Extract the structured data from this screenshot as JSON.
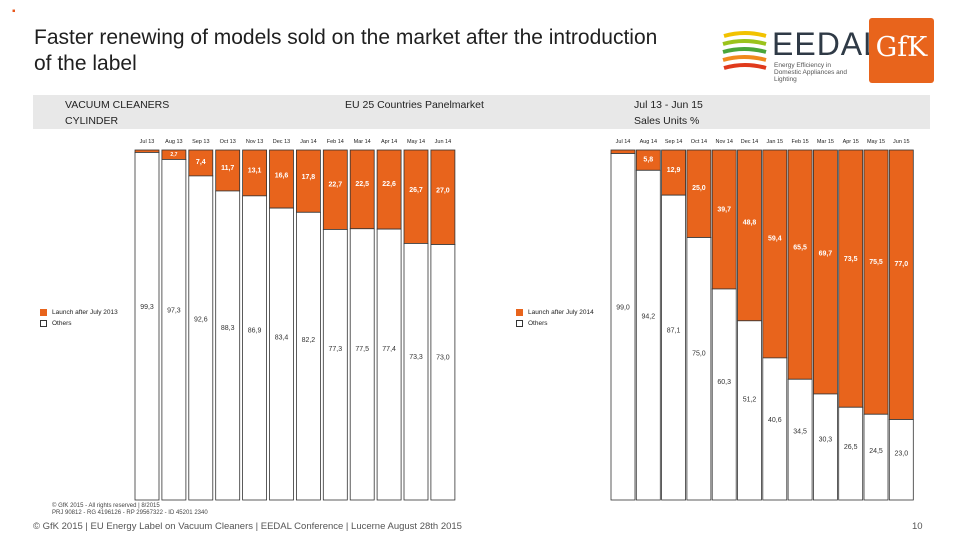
{
  "header": {
    "title": "Faster renewing of models sold on the market after the introduction of the label",
    "eedal_logo_text": "EEDAL",
    "eedal_logo_sub": "Energy Efficiency in Domestic Appliances and Lighting",
    "gfk_logo_text": "GfK"
  },
  "band": {
    "category_line1": "VACUUM CLEANERS",
    "category_line2": "CYLINDER",
    "scope": "EU 25 Countries Panelmarket",
    "period": "Jul 13 - Jun 15",
    "measure": "Sales Units %"
  },
  "colors": {
    "launch": "#e8641c",
    "others": "#ffffff",
    "outline": "#333333"
  },
  "chart_data": [
    {
      "type": "bar",
      "stacked": true,
      "categories": [
        "Jul 13",
        "Aug 13",
        "Sep 13",
        "Oct 13",
        "Nov 13",
        "Dec 13",
        "Jan 14",
        "Feb 14",
        "Mar 14",
        "Apr 14",
        "May 14",
        "Jun 14"
      ],
      "series": [
        {
          "name": "Launch after July 2013",
          "values": [
            0.7,
            2.7,
            7.4,
            11.7,
            13.1,
            16.6,
            17.8,
            22.7,
            22.5,
            22.6,
            26.7,
            27.0
          ],
          "labels": [
            "",
            "2,7",
            "7,4",
            "11,7",
            "13,1",
            "16,6",
            "17,8",
            "22,7",
            "22,5",
            "22,6",
            "26,7",
            "27,0"
          ]
        },
        {
          "name": "Others",
          "values": [
            99.3,
            97.3,
            92.6,
            88.3,
            86.9,
            83.4,
            82.2,
            77.3,
            77.5,
            77.4,
            73.3,
            73.0
          ],
          "labels": [
            "99,3",
            "97,3",
            "92,6",
            "88,3",
            "86,9",
            "83,4",
            "82,2",
            "77,3",
            "77,5",
            "77,4",
            "73,3",
            "73,0"
          ]
        }
      ],
      "legend": [
        "Launch after July 2013",
        "Others"
      ],
      "ylim": [
        0,
        100
      ]
    },
    {
      "type": "bar",
      "stacked": true,
      "categories": [
        "Jul 14",
        "Aug 14",
        "Sep 14",
        "Oct 14",
        "Nov 14",
        "Dec 14",
        "Jan 15",
        "Feb 15",
        "Mar 15",
        "Apr 15",
        "May 15",
        "Jun 15"
      ],
      "series": [
        {
          "name": "Launch after July 2014",
          "values": [
            1.0,
            5.8,
            12.9,
            25.0,
            39.7,
            48.8,
            59.4,
            65.5,
            69.7,
            73.5,
            75.5,
            77.0
          ],
          "labels": [
            "",
            "5,8",
            "12,9",
            "25,0",
            "39,7",
            "48,8",
            "59,4",
            "65,5",
            "69,7",
            "73,5",
            "75,5",
            "77,0"
          ]
        },
        {
          "name": "Others",
          "values": [
            99.0,
            94.2,
            87.1,
            75.0,
            60.3,
            51.2,
            40.6,
            34.5,
            30.3,
            26.5,
            24.5,
            23.0
          ],
          "labels": [
            "99,0",
            "94,2",
            "87,1",
            "75,0",
            "60,3",
            "51,2",
            "40,6",
            "34,5",
            "30,3",
            "26,5",
            "24,5",
            "23,0"
          ]
        }
      ],
      "legend": [
        "Launch after July 2014",
        "Others"
      ],
      "ylim": [
        0,
        100
      ]
    }
  ],
  "source": {
    "line1": "© GfK 2015 - All rights reserved | 8/2015",
    "line2": "PRJ 90812 - RG 4196126 - RP 29567322 - ID 45201 2340"
  },
  "footer": {
    "text": "© GfK 2015 | EU Energy Label on Vacuum Cleaners | EEDAL Conference | Lucerne August 28th 2015",
    "page": "10"
  }
}
